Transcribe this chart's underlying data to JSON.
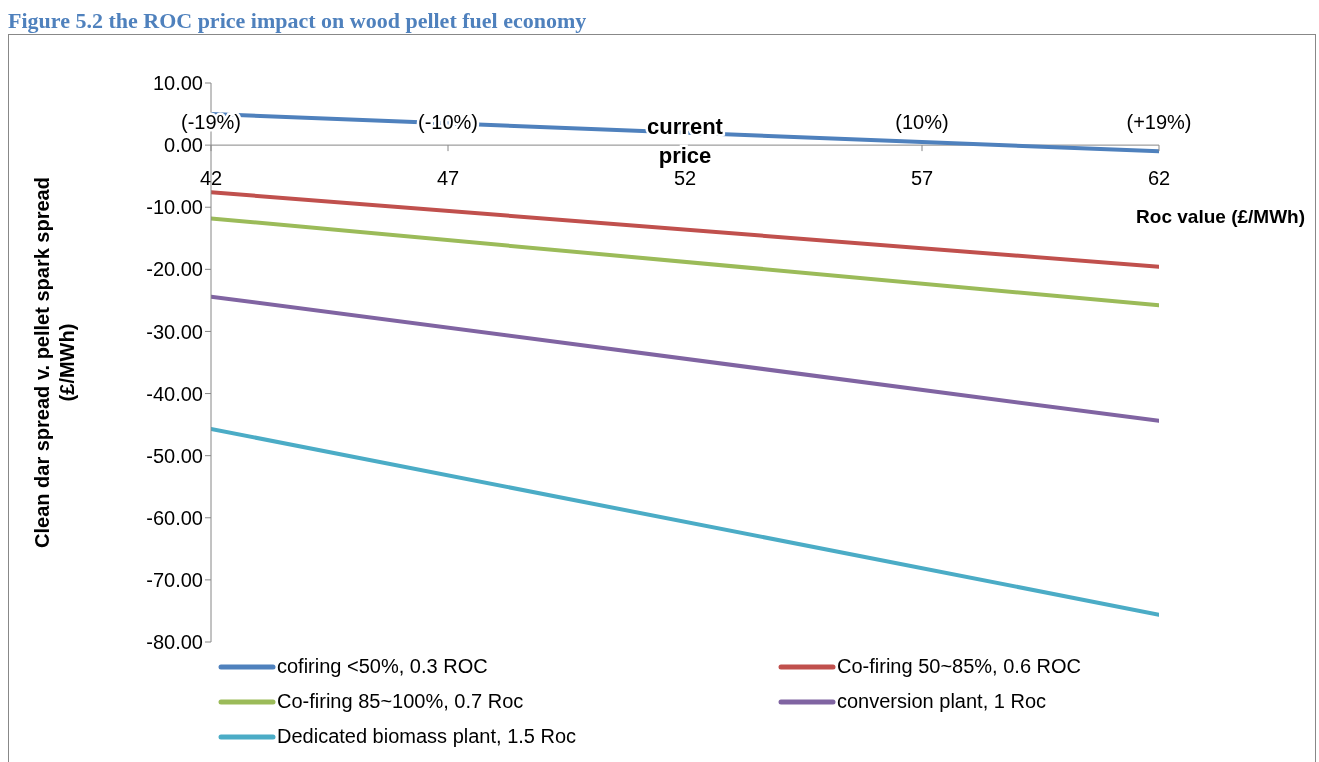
{
  "chart_data": {
    "type": "line",
    "title": "Figure 5.2 the ROC price impact on wood pellet fuel economy",
    "xlabel": "Roc value (£/MWh)",
    "ylabel": "Clean dar spread v. pellet spark spread (£/MWh)",
    "x": [
      42,
      62
    ],
    "xlim": [
      42,
      62
    ],
    "xticks": [
      42,
      47,
      52,
      57,
      62
    ],
    "ylim": [
      -80,
      10
    ],
    "yticks": [
      {
        "value": -80,
        "label": "-80.00"
      },
      {
        "value": -70,
        "label": "-70.00"
      },
      {
        "value": -60,
        "label": "-60.00"
      },
      {
        "value": -50,
        "label": "-50.00"
      },
      {
        "value": -40,
        "label": "-40.00"
      },
      {
        "value": -30,
        "label": "-30.00"
      },
      {
        "value": -20,
        "label": "-20.00"
      },
      {
        "value": -10,
        "label": "-10.00"
      },
      {
        "value": 0,
        "label": "0.00"
      },
      {
        "value": 10,
        "label": "10.00"
      }
    ],
    "grid": false,
    "legend": "bottom",
    "marker": "none",
    "line_style": "solid",
    "series": [
      {
        "name": "cofiring <50%, 0.3 ROC",
        "color": "#4f81bd",
        "values": [
          5.0,
          -1.0
        ]
      },
      {
        "name": "Co-firing 50~85%, 0.6 ROC",
        "color": "#c0504d",
        "values": [
          -7.6,
          -19.6
        ]
      },
      {
        "name": "Co-firing 85~100%, 0.7 Roc",
        "color": "#9bbb59",
        "values": [
          -11.8,
          -25.8
        ]
      },
      {
        "name": "conversion plant, 1 Roc",
        "color": "#8064a2",
        "values": [
          -24.4,
          -44.4
        ]
      },
      {
        "name": "Dedicated biomass plant, 1.5 Roc",
        "color": "#4bacc6",
        "values": [
          -45.7,
          -75.6
        ]
      }
    ],
    "annotations": [
      "(-19%)",
      "(-10%)",
      "current price",
      "(10%)",
      "(+19%)"
    ]
  }
}
